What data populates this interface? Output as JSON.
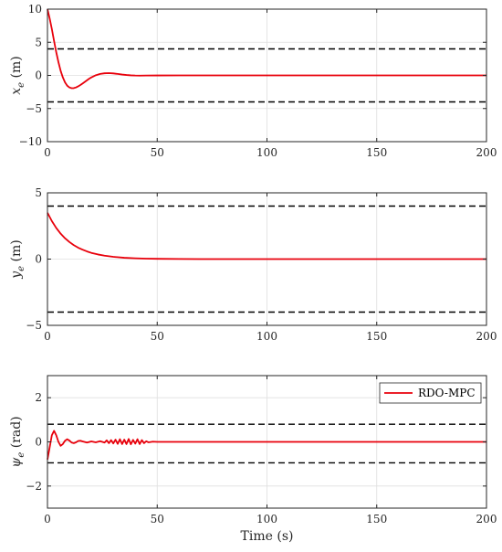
{
  "chart_data": [
    {
      "type": "line",
      "xlabel": "",
      "ylabel": "x_e (m)",
      "ylabel_var": "x",
      "ylabel_sub": "e",
      "ylabel_unit": "(m)",
      "xlim": [
        0,
        200
      ],
      "ylim": [
        -10,
        10
      ],
      "xticks": [
        0,
        50,
        100,
        150,
        200
      ],
      "yticks": [
        -10,
        -5,
        0,
        5,
        10
      ],
      "grid": true,
      "series": [
        {
          "color": "#e8000b",
          "style": "solid",
          "x": [
            0,
            1,
            2,
            3,
            4,
            5,
            6,
            7,
            8,
            9,
            10,
            11,
            12,
            13,
            14,
            15,
            16,
            17,
            18,
            19,
            20,
            22,
            24,
            26,
            28,
            30,
            32,
            34,
            36,
            38,
            40,
            42,
            45,
            50,
            60,
            80,
            100,
            150,
            200
          ],
          "y": [
            10,
            8.6,
            7.0,
            5.2,
            3.5,
            2.0,
            0.7,
            -0.3,
            -1.05,
            -1.55,
            -1.82,
            -1.93,
            -1.92,
            -1.82,
            -1.65,
            -1.45,
            -1.22,
            -0.98,
            -0.74,
            -0.5,
            -0.3,
            0.02,
            0.22,
            0.32,
            0.34,
            0.3,
            0.22,
            0.13,
            0.06,
            0.01,
            -0.02,
            -0.03,
            -0.02,
            -0.01,
            0,
            0,
            0,
            0,
            0
          ]
        },
        {
          "color": "#000000",
          "style": "dashed",
          "x": [
            0,
            200
          ],
          "y": [
            4,
            4
          ]
        },
        {
          "color": "#000000",
          "style": "dashed",
          "x": [
            0,
            200
          ],
          "y": [
            -4,
            -4
          ]
        }
      ]
    },
    {
      "type": "line",
      "xlabel": "",
      "ylabel": "y_e (m)",
      "ylabel_var": "y",
      "ylabel_sub": "e",
      "ylabel_unit": "(m)",
      "xlim": [
        0,
        200
      ],
      "ylim": [
        -5,
        5
      ],
      "xticks": [
        0,
        50,
        100,
        150,
        200
      ],
      "yticks": [
        -5,
        0,
        5
      ],
      "grid": true,
      "series": [
        {
          "color": "#e8000b",
          "style": "solid",
          "x": [
            0,
            2,
            4,
            6,
            8,
            10,
            12,
            14,
            16,
            18,
            20,
            23,
            26,
            30,
            35,
            40,
            45,
            50,
            60,
            70,
            80,
            100,
            150,
            200
          ],
          "y": [
            3.5,
            2.87,
            2.35,
            1.92,
            1.57,
            1.29,
            1.05,
            0.86,
            0.71,
            0.58,
            0.47,
            0.35,
            0.26,
            0.17,
            0.1,
            0.06,
            0.035,
            0.02,
            0.007,
            0.002,
            0.001,
            0,
            0,
            0
          ]
        },
        {
          "color": "#000000",
          "style": "dashed",
          "x": [
            0,
            200
          ],
          "y": [
            4,
            4
          ]
        },
        {
          "color": "#000000",
          "style": "dashed",
          "x": [
            0,
            200
          ],
          "y": [
            -4,
            -4
          ]
        }
      ]
    },
    {
      "type": "line",
      "xlabel": "Time (s)",
      "ylabel": "ψ_e (rad)",
      "ylabel_var": "ψ",
      "ylabel_sub": "e",
      "ylabel_unit": "(rad)",
      "xlim": [
        0,
        200
      ],
      "ylim": [
        -3,
        3
      ],
      "xticks": [
        0,
        50,
        100,
        150,
        200
      ],
      "yticks": [
        -2,
        0,
        2
      ],
      "grid": true,
      "legend": {
        "position": "top-right",
        "entries": [
          "RDO-MPC"
        ]
      },
      "series": [
        {
          "name": "RDO-MPC",
          "color": "#e8000b",
          "style": "solid",
          "x": [
            0,
            1,
            2,
            3,
            4,
            5,
            6,
            7,
            8,
            9,
            10,
            11,
            12,
            13,
            14,
            15,
            16,
            18,
            20,
            22,
            24,
            26,
            27,
            28,
            29,
            30,
            31,
            32,
            33,
            34,
            35,
            36,
            37,
            38,
            39,
            40,
            41,
            42,
            43,
            44,
            45,
            46,
            48,
            50,
            60,
            100,
            150,
            200
          ],
          "y": [
            -0.8,
            -0.25,
            0.3,
            0.5,
            0.3,
            0.0,
            -0.18,
            -0.1,
            0.05,
            0.12,
            0.06,
            -0.03,
            -0.06,
            -0.02,
            0.04,
            0.05,
            0.02,
            -0.03,
            0.02,
            -0.02,
            0.03,
            -0.03,
            0.07,
            -0.06,
            0.08,
            -0.07,
            0.1,
            -0.09,
            0.12,
            -0.1,
            0.1,
            -0.1,
            0.13,
            -0.11,
            0.09,
            -0.08,
            0.12,
            -0.1,
            0.08,
            -0.06,
            0.03,
            -0.02,
            0.01,
            0,
            0,
            0,
            0,
            0
          ]
        },
        {
          "color": "#000000",
          "style": "dashed",
          "x": [
            0,
            200
          ],
          "y": [
            0.8,
            0.8
          ]
        },
        {
          "color": "#000000",
          "style": "dashed",
          "x": [
            0,
            200
          ],
          "y": [
            -0.95,
            -0.95
          ]
        }
      ]
    }
  ]
}
